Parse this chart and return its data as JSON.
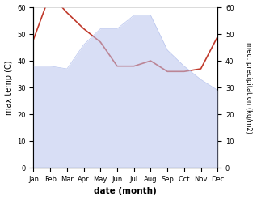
{
  "months": [
    "Jan",
    "Feb",
    "Mar",
    "Apr",
    "May",
    "Jun",
    "Jul",
    "Aug",
    "Sep",
    "Oct",
    "Nov",
    "Dec"
  ],
  "month_indices": [
    0,
    1,
    2,
    3,
    4,
    5,
    6,
    7,
    8,
    9,
    10,
    11
  ],
  "temperature": [
    38,
    38,
    37,
    46,
    52,
    52,
    57,
    57,
    44,
    38,
    33,
    29
  ],
  "precipitation": [
    48,
    65,
    58,
    52,
    47,
    38,
    38,
    40,
    36,
    36,
    37,
    49
  ],
  "temp_color": "#c0392b",
  "precip_fill_color": "#b8c4ee",
  "temp_ylim": [
    0,
    60
  ],
  "precip_ylim": [
    0,
    60
  ],
  "temp_yticks": [
    0,
    10,
    20,
    30,
    40,
    50,
    60
  ],
  "precip_yticks": [
    0,
    10,
    20,
    30,
    40,
    50,
    60
  ],
  "xlabel": "date (month)",
  "ylabel_left": "max temp (C)",
  "ylabel_right": "med. precipitation (kg/m2)",
  "background_color": "#ffffff"
}
